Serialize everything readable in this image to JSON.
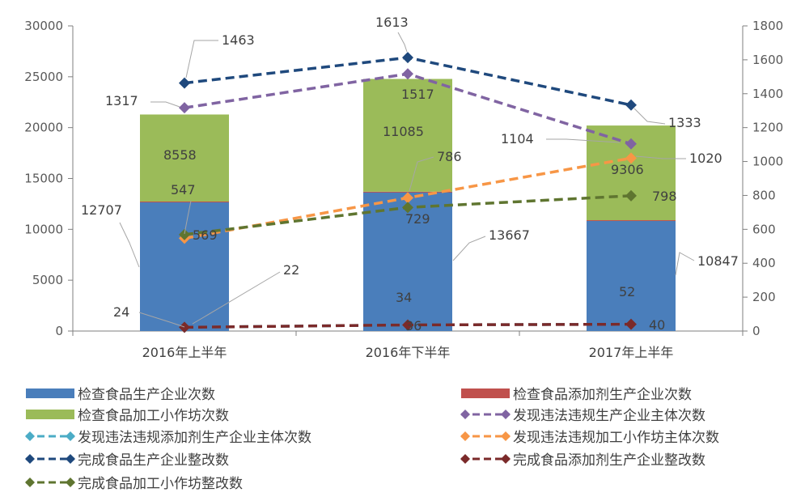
{
  "chart_data": {
    "type": "bar",
    "stacked_bars": true,
    "categories": [
      "2016年上半年",
      "2016年下半年",
      "2017年上半年"
    ],
    "y_left": {
      "min": 0,
      "max": 30000,
      "step": 5000,
      "ticks": [
        "0",
        "5000",
        "10000",
        "15000",
        "20000",
        "25000",
        "30000"
      ]
    },
    "y_right": {
      "min": 0,
      "max": 1800,
      "step": 200,
      "ticks": [
        "0",
        "200",
        "400",
        "600",
        "800",
        "1000",
        "1200",
        "1400",
        "1600",
        "1800"
      ]
    },
    "grid": false,
    "legend_position": "bottom",
    "bar_series": [
      {
        "name": "检查食品生产企业次数",
        "color": "#4a7ebb",
        "values": [
          12707,
          13667,
          10847
        ],
        "labels": [
          "12707",
          "13667",
          "10847"
        ]
      },
      {
        "name": "检查食品添加剂生产企业次数",
        "color": "#c0504d",
        "values": [
          24,
          34,
          52
        ],
        "labels": [
          "24",
          "34",
          "52"
        ]
      },
      {
        "name": "检查食品加工小作坊次数",
        "color": "#9bbb59",
        "values": [
          8558,
          11085,
          9306
        ],
        "labels": [
          "8558",
          "11085",
          "9306"
        ]
      }
    ],
    "line_series": [
      {
        "name": "发现违法违规生产企业主体次数",
        "color": "#8064a2",
        "values": [
          1317,
          1517,
          1104
        ],
        "labels": [
          "1317",
          "1517",
          "1104"
        ]
      },
      {
        "name": "发现违法违规添加剂生产企业主体次数",
        "color": "#4bacc6",
        "values": [
          22,
          36,
          40
        ],
        "labels": [
          "22",
          "36",
          "40"
        ]
      },
      {
        "name": "发现违法违规加工小作坊主体次数",
        "color": "#f79646",
        "values": [
          547,
          786,
          1020
        ],
        "labels": [
          "547",
          "786",
          "1020"
        ]
      },
      {
        "name": "完成食品生产企业整改数",
        "color": "#1f497d",
        "values": [
          1463,
          1613,
          1333
        ],
        "labels": [
          "1463",
          "1613",
          "1333"
        ]
      },
      {
        "name": "完成食品添加剂生产企业整改数",
        "color": "#7b2a2a",
        "values": [
          22,
          36,
          40
        ],
        "labels": []
      },
      {
        "name": "完成食品加工小作坊整改数",
        "color": "#5f7530",
        "values": [
          569,
          729,
          798
        ],
        "labels": [
          "569",
          "729",
          "798"
        ]
      }
    ],
    "legend": [
      {
        "series": "检查食品生产企业次数",
        "kind": "bar"
      },
      {
        "series": "检查食品添加剂生产企业次数",
        "kind": "bar"
      },
      {
        "series": "检查食品加工小作坊次数",
        "kind": "bar"
      },
      {
        "series": "发现违法违规生产企业主体次数",
        "kind": "line"
      },
      {
        "series": "发现违法违规添加剂生产企业主体次数",
        "kind": "line"
      },
      {
        "series": "发现违法违规加工小作坊主体次数",
        "kind": "line"
      },
      {
        "series": "完成食品生产企业整改数",
        "kind": "line"
      },
      {
        "series": "完成食品添加剂生产企业整改数",
        "kind": "line"
      },
      {
        "series": "完成食品加工小作坊整改数",
        "kind": "line"
      }
    ]
  }
}
